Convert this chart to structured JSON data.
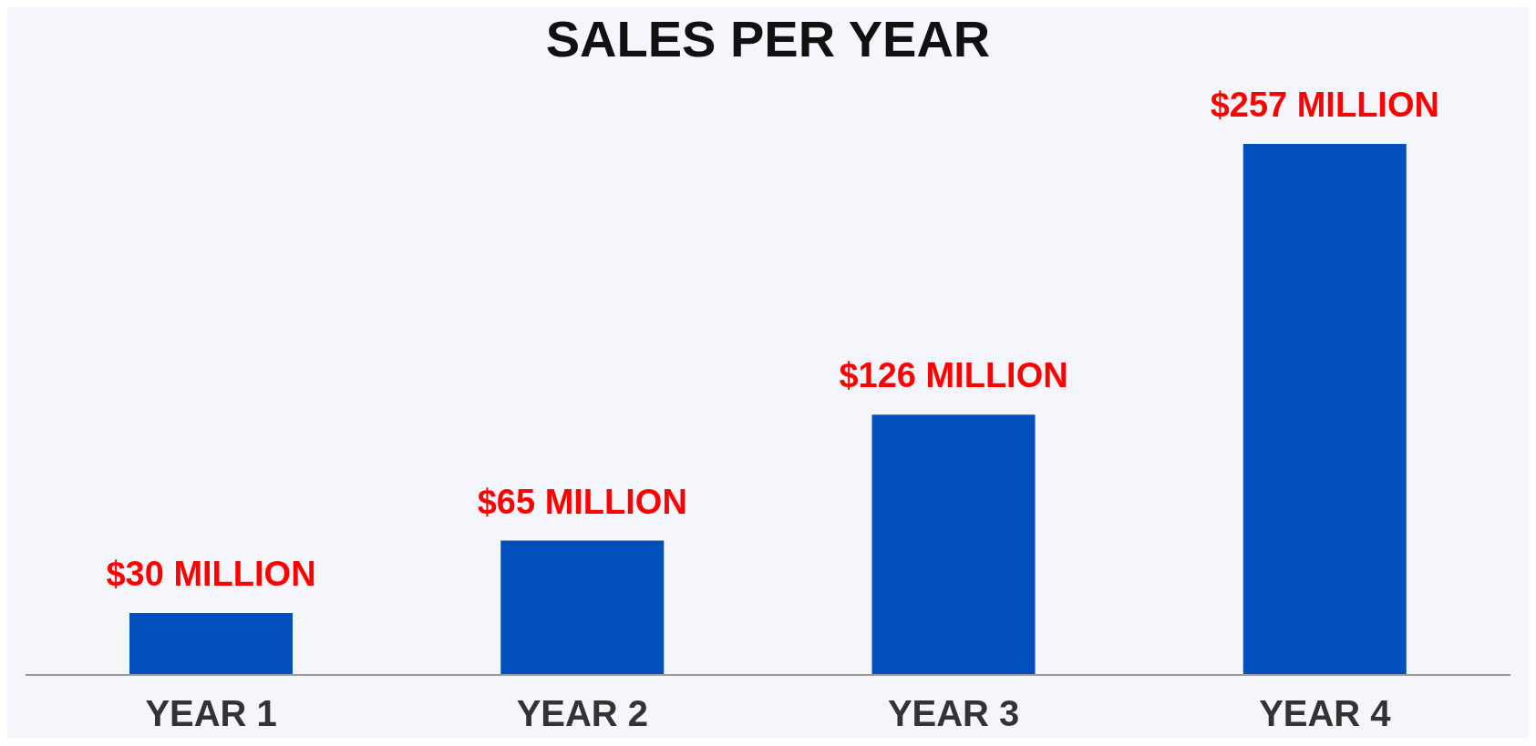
{
  "chart_data": {
    "type": "bar",
    "title": "SALES PER YEAR",
    "categories": [
      "YEAR 1",
      "YEAR 2",
      "YEAR 3",
      "YEAR 4"
    ],
    "values": [
      30,
      65,
      126,
      257
    ],
    "value_labels": [
      "$30 MILLION",
      "$65 MILLION",
      "$126 MILLION",
      "$257 MILLION"
    ],
    "color": "#004fbb"
  }
}
